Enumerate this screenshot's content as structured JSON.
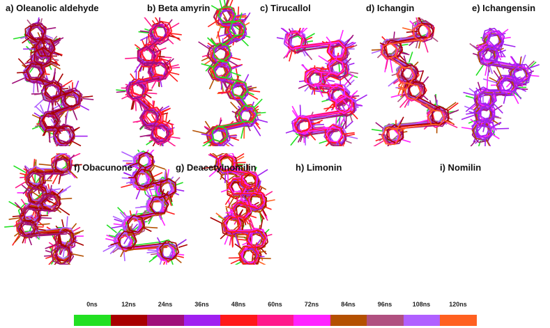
{
  "panels": [
    {
      "id": "a",
      "title": "a) Oleanolic aldehyde"
    },
    {
      "id": "b",
      "title": "b) Beta amyrin"
    },
    {
      "id": "c",
      "title": "c) Tirucallol"
    },
    {
      "id": "d",
      "title": "d) Ichangin"
    },
    {
      "id": "e",
      "title": "e) Ichangensin"
    },
    {
      "id": "f",
      "title": "f) Obacunone"
    },
    {
      "id": "g",
      "title": "g) Deacetylnomilin"
    },
    {
      "id": "h",
      "title": "h) Limonin"
    },
    {
      "id": "i",
      "title": "i) Nomilin"
    }
  ],
  "legend": [
    {
      "label": "0ns",
      "color": "#22e022"
    },
    {
      "label": "12ns",
      "color": "#a80000"
    },
    {
      "label": "24ns",
      "color": "#a0107a"
    },
    {
      "label": "36ns",
      "color": "#a020f0"
    },
    {
      "label": "48ns",
      "color": "#ff1a1a"
    },
    {
      "label": "60ns",
      "color": "#ff1a8c"
    },
    {
      "label": "72ns",
      "color": "#ff22ff"
    },
    {
      "label": "84ns",
      "color": "#b45000"
    },
    {
      "label": "96ns",
      "color": "#b05080"
    },
    {
      "label": "108ns",
      "color": "#b060ff"
    },
    {
      "label": "120ns",
      "color": "#ff6020"
    }
  ]
}
